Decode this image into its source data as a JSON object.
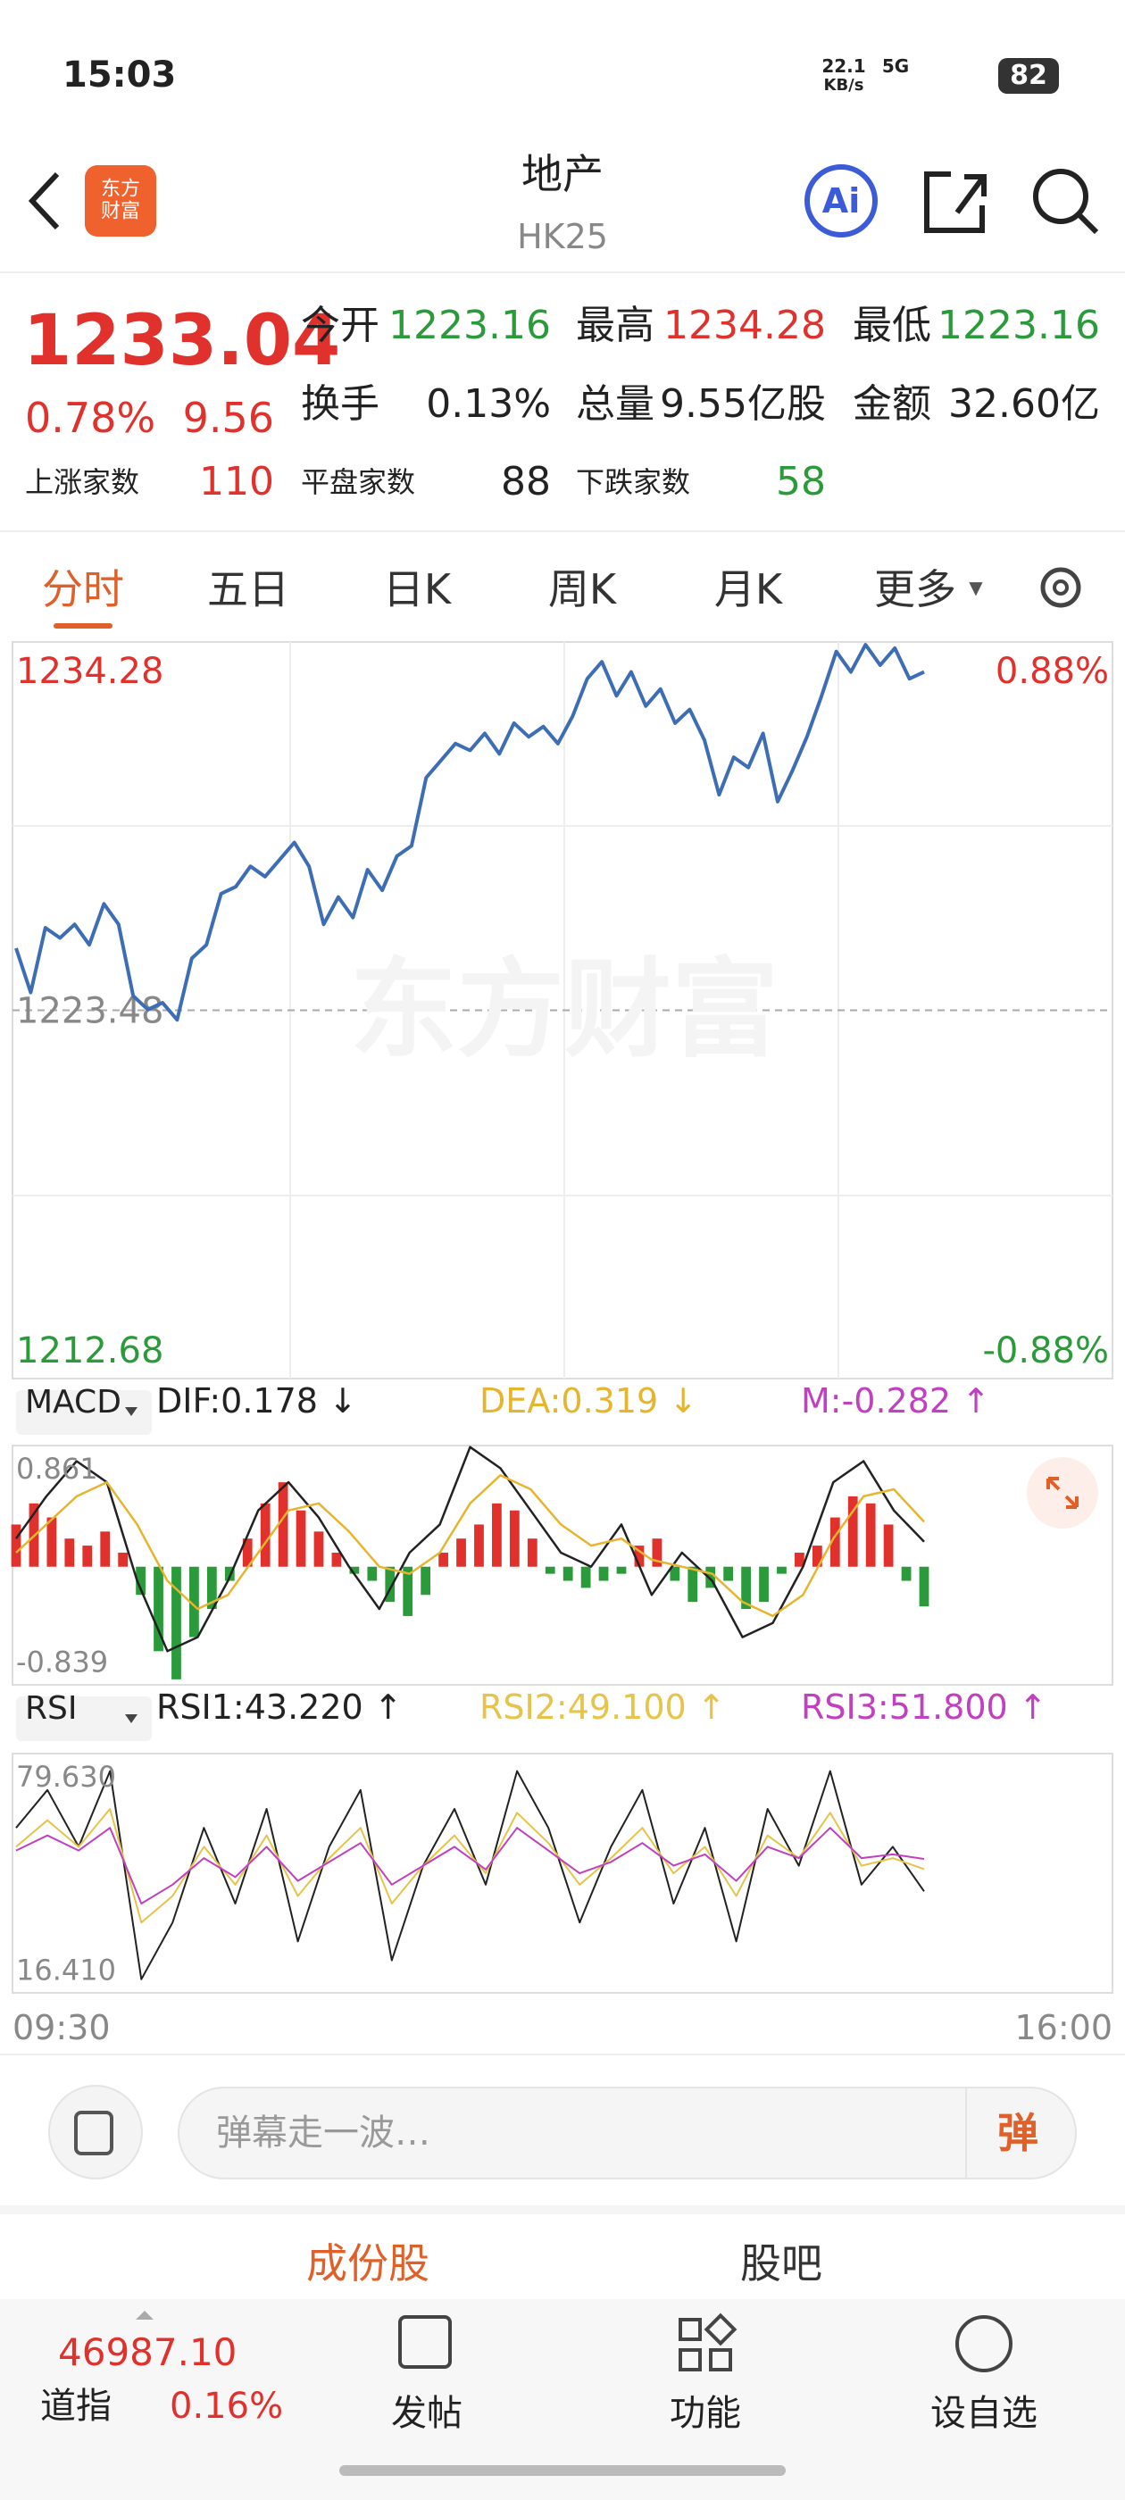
{
  "status_bar": {
    "time": "15:03",
    "net_speed": "22.1",
    "net_unit": "KB/s",
    "network": "5G",
    "battery": "82"
  },
  "header": {
    "logo": "东方财富",
    "title": "地产",
    "code": "HK25"
  },
  "quote": {
    "price": "1233.04",
    "change_pct": "0.78%",
    "change": "9.56",
    "fields": [
      {
        "label": "今开",
        "value": "1223.16"
      },
      {
        "label": "最高",
        "value": "1234.28"
      },
      {
        "label": "最低",
        "value": "1223.16"
      },
      {
        "label": "换手",
        "value": "0.13%"
      },
      {
        "label": "总量",
        "value": "9.55亿股"
      },
      {
        "label": "金额",
        "value": "32.60亿"
      }
    ],
    "breadth": [
      {
        "label": "上涨家数",
        "value": "110"
      },
      {
        "label": "平盘家数",
        "value": "88"
      },
      {
        "label": "下跌家数",
        "value": "58"
      }
    ]
  },
  "tabs": [
    "分时",
    "五日",
    "日K",
    "周K",
    "月K",
    "更多"
  ],
  "watermark": "东方财富",
  "chart_data": [
    {
      "type": "line",
      "color": "#3d6db5",
      "up_color": "#e0312c",
      "down_color": "#2a9a3a",
      "ylim": [
        1212.68,
        1234.28
      ],
      "yticks": [
        1234.28,
        1223.48,
        1212.68
      ],
      "reference": 1223.48,
      "y2lim": [
        -0.88,
        0.88
      ],
      "y2ticks": [
        {
          "value": 0.88,
          "label": "0.88%"
        },
        {
          "value": -0.88,
          "label": "-0.88%"
        }
      ],
      "values": [
        1225.3,
        1224.0,
        1225.9,
        1225.6,
        1226.0,
        1225.4,
        1226.6,
        1226.0,
        1223.9,
        1223.5,
        1223.7,
        1223.2,
        1225.0,
        1225.4,
        1226.9,
        1227.1,
        1227.7,
        1227.4,
        1227.9,
        1228.4,
        1227.7,
        1226.0,
        1226.8,
        1226.2,
        1227.6,
        1227.0,
        1228.0,
        1228.3,
        1230.3,
        1230.8,
        1231.3,
        1231.1,
        1231.6,
        1231.0,
        1231.9,
        1231.5,
        1231.8,
        1231.3,
        1232.1,
        1233.2,
        1233.7,
        1232.7,
        1233.4,
        1232.4,
        1232.9,
        1231.9,
        1232.3,
        1231.4,
        1229.8,
        1230.9,
        1230.6,
        1231.6,
        1229.6,
        1230.5,
        1231.5,
        1232.7,
        1234.0,
        1233.4,
        1234.2,
        1233.6,
        1234.1,
        1233.2,
        1233.4
      ]
    },
    {
      "type": "macd",
      "indicator": "MACD",
      "ylim": [
        -0.839,
        0.861
      ],
      "yticks": [
        0.861,
        -0.839
      ],
      "up_color": "#e0312c",
      "down_color": "#2a9a3a",
      "series": [
        {
          "name": "DIF:0.178 ↓",
          "color": "#222222",
          "values": [
            0.2,
            0.5,
            0.75,
            0.6,
            -0.1,
            -0.6,
            -0.5,
            -0.1,
            0.4,
            0.6,
            0.35,
            0.0,
            -0.3,
            0.1,
            0.3,
            0.85,
            0.7,
            0.4,
            0.1,
            0.0,
            0.3,
            -0.2,
            0.1,
            -0.1,
            -0.5,
            -0.4,
            0.0,
            0.6,
            0.75,
            0.4,
            0.178
          ]
        },
        {
          "name": "DEA:0.319 ↓",
          "color": "#e6b530",
          "values": [
            0.1,
            0.3,
            0.5,
            0.6,
            0.3,
            -0.1,
            -0.3,
            -0.2,
            0.1,
            0.4,
            0.45,
            0.25,
            0.0,
            -0.05,
            0.1,
            0.45,
            0.65,
            0.55,
            0.3,
            0.15,
            0.2,
            0.05,
            0.0,
            -0.05,
            -0.25,
            -0.35,
            -0.2,
            0.2,
            0.5,
            0.55,
            0.319
          ]
        },
        {
          "name": "M:-0.282 ↑",
          "color": "#c040c0",
          "kind": "histogram",
          "values": [
            0.3,
            0.45,
            0.35,
            0.2,
            0.15,
            0.25,
            0.1,
            -0.2,
            -0.6,
            -0.8,
            -0.5,
            -0.3,
            -0.1,
            0.2,
            0.45,
            0.6,
            0.4,
            0.25,
            0.1,
            -0.05,
            -0.1,
            -0.25,
            -0.35,
            -0.2,
            0.1,
            0.2,
            0.3,
            0.45,
            0.4,
            0.2,
            -0.05,
            -0.1,
            -0.15,
            -0.1,
            -0.05,
            0.15,
            0.2,
            -0.1,
            -0.25,
            -0.15,
            -0.1,
            -0.3,
            -0.25,
            -0.05,
            0.1,
            0.15,
            0.35,
            0.5,
            0.45,
            0.3,
            -0.1,
            -0.282
          ]
        }
      ]
    },
    {
      "type": "rsi",
      "indicator": "RSI",
      "ylim": [
        16.41,
        79.63
      ],
      "yticks": [
        {
          "value": 79.63,
          "label": "79.630"
        },
        {
          "value": 16.41,
          "label": "16.410"
        }
      ],
      "series": [
        {
          "name": "RSI1:43.220 ↑",
          "color": "#222222",
          "values": [
            60,
            70,
            55,
            75,
            20,
            35,
            60,
            40,
            65,
            30,
            55,
            70,
            25,
            50,
            65,
            45,
            75,
            60,
            35,
            55,
            70,
            40,
            60,
            30,
            65,
            50,
            75,
            45,
            55,
            43.22
          ]
        },
        {
          "name": "RSI2:49.100 ↑",
          "color": "#e6c34a",
          "values": [
            55,
            62,
            55,
            65,
            35,
            42,
            55,
            45,
            58,
            42,
            52,
            60,
            40,
            50,
            58,
            48,
            64,
            56,
            45,
            52,
            60,
            48,
            55,
            42,
            58,
            52,
            64,
            50,
            52,
            49.1
          ]
        },
        {
          "name": "RSI3:51.800 ↑",
          "color": "#c040c0",
          "values": [
            54,
            58,
            54,
            60,
            40,
            45,
            52,
            47,
            55,
            46,
            51,
            56,
            45,
            50,
            55,
            49,
            60,
            54,
            48,
            51,
            56,
            50,
            53,
            46,
            55,
            52,
            60,
            52,
            53,
            51.8
          ]
        }
      ]
    }
  ],
  "time_axis": [
    "09:30",
    "16:00"
  ],
  "composer": {
    "placeholder": "弹幕走一波…",
    "button": "弹"
  },
  "sub_tabs": [
    "成份股",
    "股吧"
  ],
  "bottom_bar": {
    "index_value": "46987.10",
    "index_name": "道指",
    "index_pct": "0.16%",
    "actions": [
      "发帖",
      "功能",
      "设自选"
    ]
  }
}
